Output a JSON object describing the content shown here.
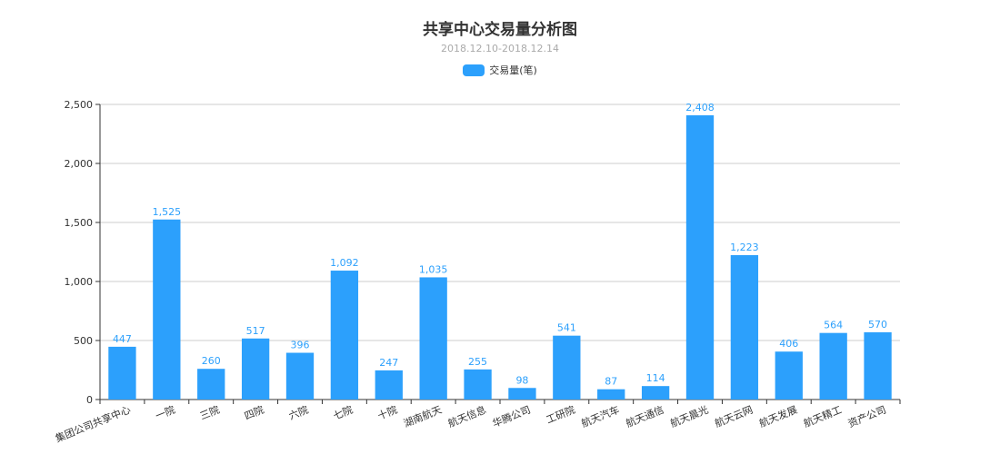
{
  "chart_data": {
    "type": "bar",
    "title": "共享中心交易量分析图",
    "subtitle": "2018.12.10-2018.12.14",
    "categories": [
      "集团公司共享中心",
      "一院",
      "三院",
      "四院",
      "六院",
      "七院",
      "十院",
      "湖南航天",
      "航天信息",
      "华腾公司",
      "工研院",
      "航天汽车",
      "航天通信",
      "航天晨光",
      "航天云网",
      "航天发展",
      "航天精工",
      "资产公司"
    ],
    "series": [
      {
        "name": "交易量(笔)",
        "values": [
          447,
          1525,
          260,
          517,
          396,
          1092,
          247,
          1035,
          255,
          98,
          541,
          87,
          114,
          2408,
          1223,
          406,
          564,
          570
        ],
        "labels": [
          "447",
          "1,525",
          "260",
          "517",
          "396",
          "1,092",
          "247",
          "1,035",
          "255",
          "98",
          "541",
          "87",
          "114",
          "2,408",
          "1,223",
          "406",
          "564",
          "570"
        ]
      }
    ],
    "ylim": [
      0,
      2500
    ],
    "yticks": [
      "0",
      "500",
      "1,000",
      "1,500",
      "2,000",
      "2,500"
    ],
    "grid": true,
    "legend_position": "top-center",
    "color": "#2ca0fc"
  }
}
